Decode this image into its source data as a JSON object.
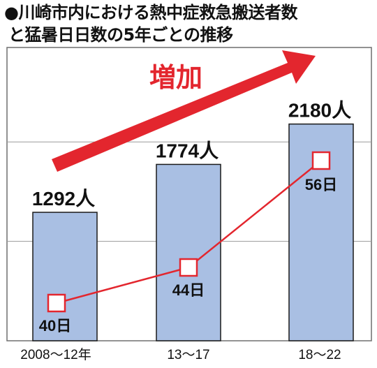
{
  "title": {
    "line1": "●川崎市内における熱中症救急搬送者数",
    "line2": "と猛暑日日数の5年ごとの推移"
  },
  "trend_label": "増加",
  "colors": {
    "bar_fill": "#a9bfe3",
    "bar_stroke": "#1a1a1a",
    "line": "#e3262e",
    "arrow": "#e3262e",
    "grid": "#9a9a9a",
    "frame": "#6f6f6f"
  },
  "chart_data": {
    "type": "bar",
    "categories": [
      "2008〜12年",
      "13〜17",
      "18〜22"
    ],
    "series": [
      {
        "type": "bar",
        "values": [
          1292,
          1774,
          2180
        ],
        "labels": [
          "1292人",
          "1774人",
          "2180人"
        ]
      },
      {
        "type": "line",
        "values": [
          40,
          44,
          56
        ],
        "labels": [
          "40日",
          "44日",
          "56日"
        ]
      }
    ],
    "grid": true
  }
}
